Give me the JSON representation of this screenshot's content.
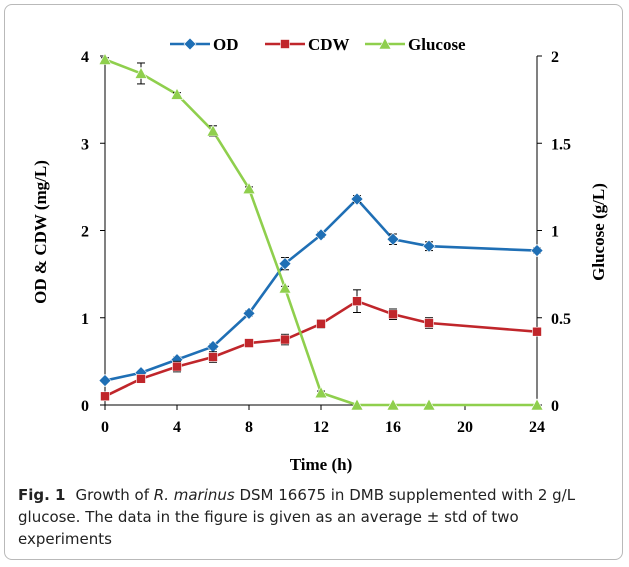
{
  "chart_data": {
    "type": "line",
    "x": [
      0,
      2,
      4,
      6,
      8,
      10,
      12,
      14,
      16,
      18,
      24
    ],
    "xlabel": "Time (h)",
    "ylabel_left": "OD & CDW (mg/L)",
    "ylabel_right": "Glucose (g/L)",
    "xlim": [
      0,
      24
    ],
    "ylim_left": [
      0,
      4
    ],
    "ylim_right": [
      0,
      2
    ],
    "x_ticks": [
      "0",
      "4",
      "8",
      "12",
      "16",
      "20",
      "24"
    ],
    "x_tick_values": [
      0,
      4,
      8,
      12,
      16,
      20,
      24
    ],
    "y_left_ticks": [
      "0",
      "1",
      "2",
      "3",
      "4"
    ],
    "y_left_tick_values": [
      0,
      1,
      2,
      3,
      4
    ],
    "y_right_ticks": [
      "0",
      "0.5",
      "1",
      "1.5",
      "2"
    ],
    "y_right_tick_values": [
      0,
      0.5,
      1,
      1.5,
      2
    ],
    "grid": false,
    "legend_position": "top",
    "series": [
      {
        "name": "OD",
        "axis": "left",
        "color": "#1f6fb5",
        "marker": "diamond",
        "values": [
          0.28,
          0.37,
          0.52,
          0.67,
          1.05,
          1.62,
          1.95,
          2.36,
          1.9,
          1.82,
          1.77
        ],
        "errors": [
          0.02,
          0.02,
          0.03,
          0.03,
          0.03,
          0.07,
          0.03,
          0.04,
          0.06,
          0.05,
          0.03
        ]
      },
      {
        "name": "CDW",
        "axis": "left",
        "color": "#c0262b",
        "marker": "square",
        "values": [
          0.1,
          0.3,
          0.44,
          0.55,
          0.71,
          0.75,
          0.93,
          1.19,
          1.04,
          0.94,
          0.84
        ],
        "errors": [
          0.02,
          0.03,
          0.06,
          0.06,
          0.03,
          0.06,
          0.05,
          0.13,
          0.06,
          0.06,
          0.03
        ]
      },
      {
        "name": "Glucose",
        "axis": "right",
        "color": "#8fcf4d",
        "marker": "triangle",
        "values": [
          1.98,
          1.9,
          1.78,
          1.57,
          1.24,
          0.67,
          0.07,
          0.0,
          0.0,
          0.0,
          0.0
        ],
        "errors": [
          0.01,
          0.06,
          0.01,
          0.03,
          0.01,
          0.01,
          0.01,
          0.0,
          0.0,
          0.0,
          0.0
        ]
      }
    ]
  },
  "caption": {
    "label": "Fig. 1",
    "text_before_italic": "Growth of ",
    "italic": "R. marinus",
    "text_after_italic": " DSM 16675 in DMB supplemented with 2 g/L glucose. The data in the figure is given as an average ± std of two experiments"
  }
}
